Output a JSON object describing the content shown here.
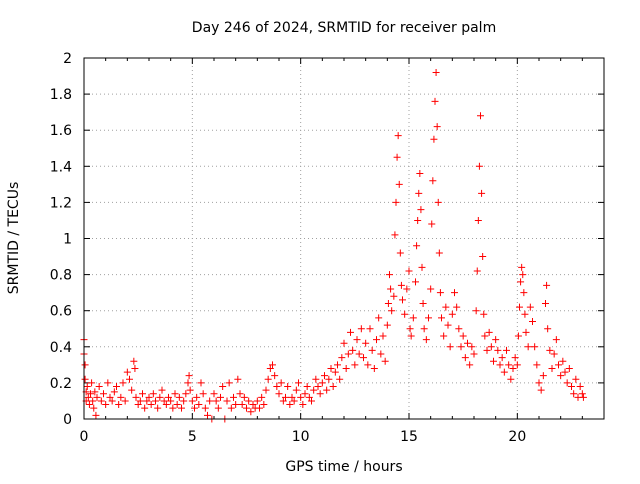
{
  "chart_data": {
    "type": "scatter",
    "title": "Day 246 of 2024, SRMTID for receiver palm",
    "xlabel": "GPS time / hours",
    "ylabel": "SRMTID / TECUs",
    "xlim": [
      0,
      24
    ],
    "ylim": [
      0,
      2
    ],
    "xticks": [
      0,
      5,
      10,
      15,
      20
    ],
    "xtick_labels": [
      "0",
      "5",
      "10",
      "15",
      "20"
    ],
    "yticks": [
      0,
      0.2,
      0.4,
      0.6,
      0.8,
      1,
      1.2,
      1.4,
      1.6,
      1.8,
      2
    ],
    "ytick_labels": [
      "0",
      "0.2",
      "0.4",
      "0.6",
      "0.8",
      "1",
      "1.2",
      "1.4",
      "1.6",
      "1.8",
      "2"
    ],
    "grid": true,
    "marker": "+",
    "color": "#ff0000",
    "series": [
      {
        "name": "SRMTID",
        "points": [
          [
            0.0,
            0.44
          ],
          [
            0.0,
            0.36
          ],
          [
            0.05,
            0.3
          ],
          [
            0.05,
            0.22
          ],
          [
            0.1,
            0.15
          ],
          [
            0.1,
            0.1
          ],
          [
            0.15,
            0.18
          ],
          [
            0.2,
            0.12
          ],
          [
            0.25,
            0.08
          ],
          [
            0.3,
            0.14
          ],
          [
            0.35,
            0.2
          ],
          [
            0.4,
            0.1
          ],
          [
            0.45,
            0.06
          ],
          [
            0.5,
            0.15
          ],
          [
            0.55,
            0.02
          ],
          [
            0.6,
            0.12
          ],
          [
            0.7,
            0.18
          ],
          [
            0.8,
            0.1
          ],
          [
            0.9,
            0.14
          ],
          [
            1.0,
            0.08
          ],
          [
            1.1,
            0.2
          ],
          [
            1.2,
            0.12
          ],
          [
            1.3,
            0.1
          ],
          [
            1.4,
            0.15
          ],
          [
            1.5,
            0.18
          ],
          [
            1.6,
            0.08
          ],
          [
            1.7,
            0.12
          ],
          [
            1.8,
            0.2
          ],
          [
            1.9,
            0.1
          ],
          [
            2.0,
            0.26
          ],
          [
            2.1,
            0.22
          ],
          [
            2.2,
            0.16
          ],
          [
            2.3,
            0.32
          ],
          [
            2.35,
            0.28
          ],
          [
            2.4,
            0.12
          ],
          [
            2.5,
            0.08
          ],
          [
            2.6,
            0.1
          ],
          [
            2.7,
            0.14
          ],
          [
            2.8,
            0.06
          ],
          [
            2.9,
            0.1
          ],
          [
            3.0,
            0.12
          ],
          [
            3.1,
            0.08
          ],
          [
            3.2,
            0.14
          ],
          [
            3.3,
            0.1
          ],
          [
            3.4,
            0.06
          ],
          [
            3.5,
            0.12
          ],
          [
            3.6,
            0.16
          ],
          [
            3.7,
            0.1
          ],
          [
            3.8,
            0.08
          ],
          [
            3.9,
            0.12
          ],
          [
            4.0,
            0.1
          ],
          [
            4.1,
            0.06
          ],
          [
            4.2,
            0.14
          ],
          [
            4.3,
            0.08
          ],
          [
            4.4,
            0.12
          ],
          [
            4.5,
            0.06
          ],
          [
            4.6,
            0.1
          ],
          [
            4.7,
            0.14
          ],
          [
            4.8,
            0.2
          ],
          [
            4.85,
            0.24
          ],
          [
            4.9,
            0.16
          ],
          [
            5.0,
            0.1
          ],
          [
            5.1,
            0.06
          ],
          [
            5.2,
            0.12
          ],
          [
            5.3,
            0.08
          ],
          [
            5.4,
            0.2
          ],
          [
            5.5,
            0.14
          ],
          [
            5.6,
            0.06
          ],
          [
            5.7,
            0.02
          ],
          [
            5.8,
            0.1
          ],
          [
            5.9,
            0.0
          ],
          [
            6.0,
            0.14
          ],
          [
            6.1,
            0.1
          ],
          [
            6.2,
            0.06
          ],
          [
            6.3,
            0.12
          ],
          [
            6.4,
            0.18
          ],
          [
            6.5,
            0.0
          ],
          [
            6.6,
            0.1
          ],
          [
            6.7,
            0.2
          ],
          [
            6.8,
            0.06
          ],
          [
            6.9,
            0.12
          ],
          [
            7.0,
            0.08
          ],
          [
            7.1,
            0.22
          ],
          [
            7.2,
            0.14
          ],
          [
            7.3,
            0.08
          ],
          [
            7.4,
            0.12
          ],
          [
            7.5,
            0.06
          ],
          [
            7.6,
            0.1
          ],
          [
            7.7,
            0.04
          ],
          [
            7.8,
            0.08
          ],
          [
            7.9,
            0.06
          ],
          [
            8.0,
            0.1
          ],
          [
            8.1,
            0.06
          ],
          [
            8.2,
            0.12
          ],
          [
            8.3,
            0.08
          ],
          [
            8.4,
            0.16
          ],
          [
            8.5,
            0.22
          ],
          [
            8.6,
            0.28
          ],
          [
            8.7,
            0.3
          ],
          [
            8.8,
            0.24
          ],
          [
            8.9,
            0.18
          ],
          [
            9.0,
            0.14
          ],
          [
            9.1,
            0.2
          ],
          [
            9.2,
            0.1
          ],
          [
            9.3,
            0.12
          ],
          [
            9.4,
            0.18
          ],
          [
            9.5,
            0.08
          ],
          [
            9.6,
            0.12
          ],
          [
            9.7,
            0.1
          ],
          [
            9.8,
            0.16
          ],
          [
            9.9,
            0.2
          ],
          [
            10.0,
            0.12
          ],
          [
            10.1,
            0.08
          ],
          [
            10.2,
            0.14
          ],
          [
            10.3,
            0.18
          ],
          [
            10.4,
            0.12
          ],
          [
            10.5,
            0.1
          ],
          [
            10.6,
            0.16
          ],
          [
            10.7,
            0.22
          ],
          [
            10.8,
            0.18
          ],
          [
            10.9,
            0.14
          ],
          [
            11.0,
            0.2
          ],
          [
            11.1,
            0.24
          ],
          [
            11.2,
            0.16
          ],
          [
            11.3,
            0.22
          ],
          [
            11.4,
            0.28
          ],
          [
            11.5,
            0.18
          ],
          [
            11.6,
            0.26
          ],
          [
            11.7,
            0.3
          ],
          [
            11.8,
            0.22
          ],
          [
            11.9,
            0.34
          ],
          [
            12.0,
            0.42
          ],
          [
            12.1,
            0.28
          ],
          [
            12.2,
            0.36
          ],
          [
            12.3,
            0.48
          ],
          [
            12.4,
            0.38
          ],
          [
            12.5,
            0.3
          ],
          [
            12.6,
            0.44
          ],
          [
            12.7,
            0.36
          ],
          [
            12.8,
            0.5
          ],
          [
            12.9,
            0.34
          ],
          [
            13.0,
            0.42
          ],
          [
            13.1,
            0.3
          ],
          [
            13.2,
            0.5
          ],
          [
            13.3,
            0.38
          ],
          [
            13.4,
            0.28
          ],
          [
            13.5,
            0.44
          ],
          [
            13.6,
            0.56
          ],
          [
            13.7,
            0.36
          ],
          [
            13.8,
            0.46
          ],
          [
            13.9,
            0.32
          ],
          [
            14.0,
            0.52
          ],
          [
            14.05,
            0.64
          ],
          [
            14.1,
            0.8
          ],
          [
            14.15,
            0.72
          ],
          [
            14.2,
            0.6
          ],
          [
            14.3,
            0.68
          ],
          [
            14.35,
            1.02
          ],
          [
            14.4,
            1.2
          ],
          [
            14.45,
            1.45
          ],
          [
            14.5,
            1.57
          ],
          [
            14.55,
            1.3
          ],
          [
            14.6,
            0.92
          ],
          [
            14.65,
            0.74
          ],
          [
            14.7,
            0.66
          ],
          [
            14.8,
            0.58
          ],
          [
            14.9,
            0.72
          ],
          [
            15.0,
            0.82
          ],
          [
            15.05,
            0.5
          ],
          [
            15.1,
            0.46
          ],
          [
            15.2,
            0.56
          ],
          [
            15.3,
            0.76
          ],
          [
            15.35,
            0.96
          ],
          [
            15.4,
            1.1
          ],
          [
            15.45,
            1.25
          ],
          [
            15.5,
            1.36
          ],
          [
            15.55,
            1.16
          ],
          [
            15.6,
            0.84
          ],
          [
            15.65,
            0.64
          ],
          [
            15.7,
            0.5
          ],
          [
            15.8,
            0.44
          ],
          [
            15.9,
            0.56
          ],
          [
            16.0,
            0.72
          ],
          [
            16.05,
            1.08
          ],
          [
            16.1,
            1.32
          ],
          [
            16.15,
            1.55
          ],
          [
            16.2,
            1.76
          ],
          [
            16.25,
            1.92
          ],
          [
            16.3,
            1.62
          ],
          [
            16.35,
            1.2
          ],
          [
            16.4,
            0.92
          ],
          [
            16.45,
            0.7
          ],
          [
            16.5,
            0.56
          ],
          [
            16.6,
            0.46
          ],
          [
            16.7,
            0.62
          ],
          [
            16.8,
            0.52
          ],
          [
            16.9,
            0.4
          ],
          [
            17.0,
            0.58
          ],
          [
            17.1,
            0.7
          ],
          [
            17.2,
            0.62
          ],
          [
            17.3,
            0.5
          ],
          [
            17.4,
            0.4
          ],
          [
            17.5,
            0.46
          ],
          [
            17.6,
            0.34
          ],
          [
            17.7,
            0.42
          ],
          [
            17.8,
            0.3
          ],
          [
            17.9,
            0.4
          ],
          [
            18.0,
            0.36
          ],
          [
            18.1,
            0.6
          ],
          [
            18.15,
            0.82
          ],
          [
            18.2,
            1.1
          ],
          [
            18.25,
            1.4
          ],
          [
            18.3,
            1.68
          ],
          [
            18.35,
            1.25
          ],
          [
            18.4,
            0.9
          ],
          [
            18.45,
            0.58
          ],
          [
            18.5,
            0.46
          ],
          [
            18.6,
            0.38
          ],
          [
            18.7,
            0.48
          ],
          [
            18.8,
            0.4
          ],
          [
            18.9,
            0.32
          ],
          [
            19.0,
            0.44
          ],
          [
            19.1,
            0.38
          ],
          [
            19.2,
            0.3
          ],
          [
            19.3,
            0.34
          ],
          [
            19.4,
            0.26
          ],
          [
            19.5,
            0.38
          ],
          [
            19.6,
            0.3
          ],
          [
            19.7,
            0.22
          ],
          [
            19.8,
            0.28
          ],
          [
            19.9,
            0.34
          ],
          [
            20.0,
            0.3
          ],
          [
            20.05,
            0.46
          ],
          [
            20.1,
            0.62
          ],
          [
            20.15,
            0.76
          ],
          [
            20.2,
            0.84
          ],
          [
            20.25,
            0.8
          ],
          [
            20.3,
            0.7
          ],
          [
            20.35,
            0.58
          ],
          [
            20.4,
            0.48
          ],
          [
            20.5,
            0.4
          ],
          [
            20.6,
            0.62
          ],
          [
            20.7,
            0.54
          ],
          [
            20.8,
            0.4
          ],
          [
            20.9,
            0.3
          ],
          [
            21.0,
            0.2
          ],
          [
            21.1,
            0.16
          ],
          [
            21.2,
            0.24
          ],
          [
            21.3,
            0.64
          ],
          [
            21.35,
            0.74
          ],
          [
            21.4,
            0.5
          ],
          [
            21.5,
            0.38
          ],
          [
            21.6,
            0.28
          ],
          [
            21.7,
            0.36
          ],
          [
            21.8,
            0.44
          ],
          [
            21.9,
            0.3
          ],
          [
            22.0,
            0.24
          ],
          [
            22.1,
            0.32
          ],
          [
            22.2,
            0.26
          ],
          [
            22.3,
            0.2
          ],
          [
            22.4,
            0.28
          ],
          [
            22.5,
            0.18
          ],
          [
            22.6,
            0.14
          ],
          [
            22.7,
            0.22
          ],
          [
            22.8,
            0.12
          ],
          [
            22.9,
            0.18
          ],
          [
            23.0,
            0.14
          ],
          [
            23.05,
            0.12
          ]
        ]
      }
    ]
  }
}
